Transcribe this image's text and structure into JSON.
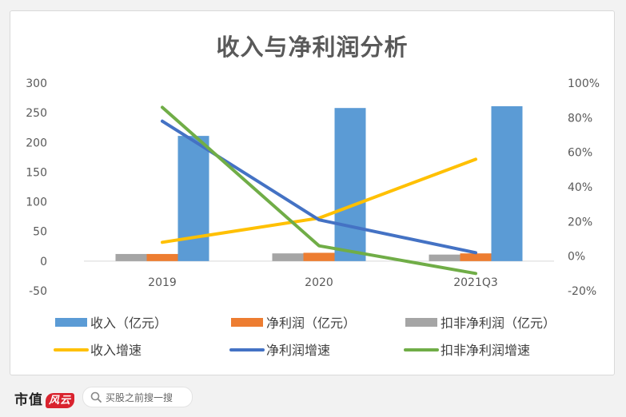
{
  "chart_data": {
    "type": "bar",
    "title": "收入与净利润分析",
    "categories": [
      "2019",
      "2020",
      "2021Q3"
    ],
    "y_left": {
      "ticks": [
        -50,
        0,
        50,
        100,
        150,
        200,
        250,
        300
      ],
      "ylim": [
        -50,
        300
      ]
    },
    "y_right": {
      "ticks": [
        "-20%",
        "0%",
        "20%",
        "40%",
        "60%",
        "80%",
        "100%"
      ],
      "ylim": [
        -0.2,
        1.0
      ]
    },
    "bar_series": [
      {
        "name": "收入（亿元）",
        "color": "#5b9bd5",
        "values": [
          211,
          258,
          261
        ]
      },
      {
        "name": "净利润（亿元）",
        "color": "#ed7d31",
        "values": [
          12,
          14,
          13
        ]
      },
      {
        "name": "扣非净利润（亿元）",
        "color": "#a5a5a5",
        "values": [
          12,
          13,
          11
        ]
      }
    ],
    "line_series": [
      {
        "name": "收入增速",
        "color": "#ffc000",
        "values": [
          0.08,
          0.22,
          0.56
        ]
      },
      {
        "name": "净利润增速",
        "color": "#4472c4",
        "values": [
          0.78,
          0.21,
          0.02
        ]
      },
      {
        "name": "扣非净利润增速",
        "color": "#70ad47",
        "values": [
          0.86,
          0.06,
          -0.1
        ]
      }
    ],
    "legend_position": "bottom",
    "grid": false
  },
  "footer": {
    "brand": "市值",
    "brand_mark": "风云",
    "search_placeholder": "买股之前搜一搜"
  }
}
